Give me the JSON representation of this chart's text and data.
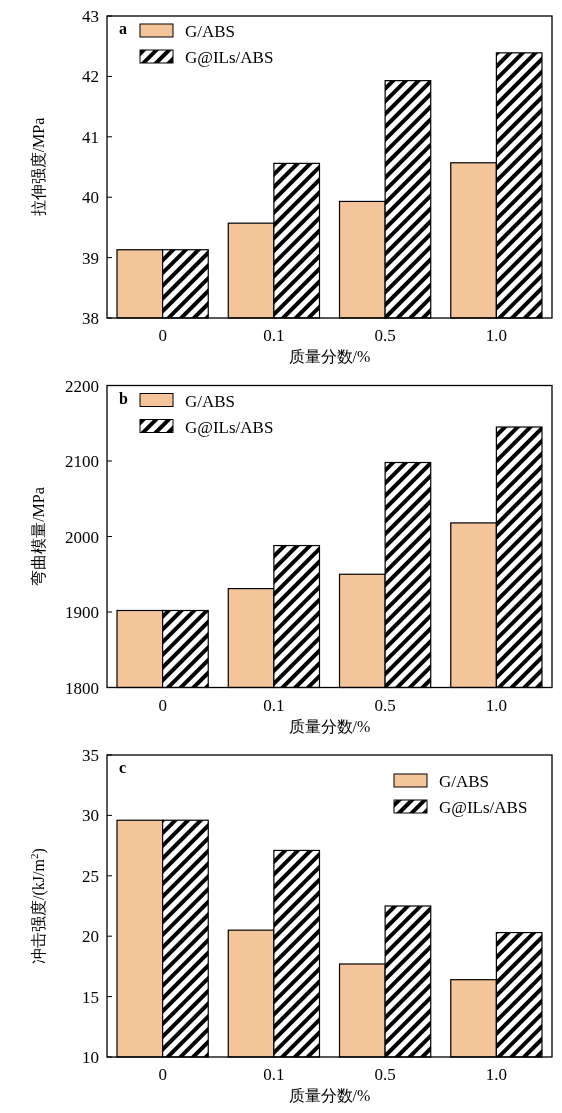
{
  "chart_data": [
    {
      "type": "bar",
      "categories": [
        "0",
        "0.1",
        "0.5",
        "1.0"
      ],
      "xlabel": "质量分数/%",
      "ylabel": "拉伸强度/MPa",
      "annotations": [
        "a"
      ],
      "ylim": [
        38,
        43
      ],
      "yticks": [
        38,
        39,
        40,
        41,
        42,
        43
      ],
      "legend": "top left",
      "grid": false,
      "series": [
        {
          "name": "G/ABS",
          "color": "#f4c49b",
          "values": [
            39.13,
            39.57,
            39.93,
            40.57
          ]
        },
        {
          "name": "G@ILs/ABS",
          "color": "#000000",
          "values": [
            39.13,
            40.56,
            41.93,
            42.39
          ]
        }
      ]
    },
    {
      "type": "bar",
      "categories": [
        "0",
        "0.1",
        "0.5",
        "1.0"
      ],
      "xlabel": "质量分数/%",
      "ylabel": "弯曲模量/MPa",
      "annotations": [
        "b"
      ],
      "ylim": [
        1800,
        2200
      ],
      "yticks": [
        1800,
        1900,
        2000,
        2100,
        2200
      ],
      "legend": "top left",
      "grid": false,
      "series": [
        {
          "name": "G/ABS",
          "color": "#f4c49b",
          "values": [
            1902,
            1931,
            1950,
            2018
          ]
        },
        {
          "name": "G@ILs/ABS",
          "color": "#000000",
          "values": [
            1902,
            1988,
            2098,
            2145
          ]
        }
      ]
    },
    {
      "type": "bar",
      "categories": [
        "0",
        "0.1",
        "0.5",
        "1.0"
      ],
      "xlabel": "质量分数/%",
      "ylabel": "冲击强度/(kJ/m$^{2}$)",
      "annotations": [
        "c"
      ],
      "ylim": [
        10,
        35
      ],
      "yticks": [
        10,
        15,
        20,
        25,
        30,
        35
      ],
      "legend": "top right",
      "grid": false,
      "series": [
        {
          "name": "G/ABS",
          "color": "#f4c49b",
          "values": [
            29.6,
            20.5,
            17.7,
            16.4
          ]
        },
        {
          "name": "G@ILs/ABS",
          "color": "#000000",
          "values": [
            29.6,
            27.1,
            22.5,
            20.3
          ]
        }
      ]
    }
  ]
}
